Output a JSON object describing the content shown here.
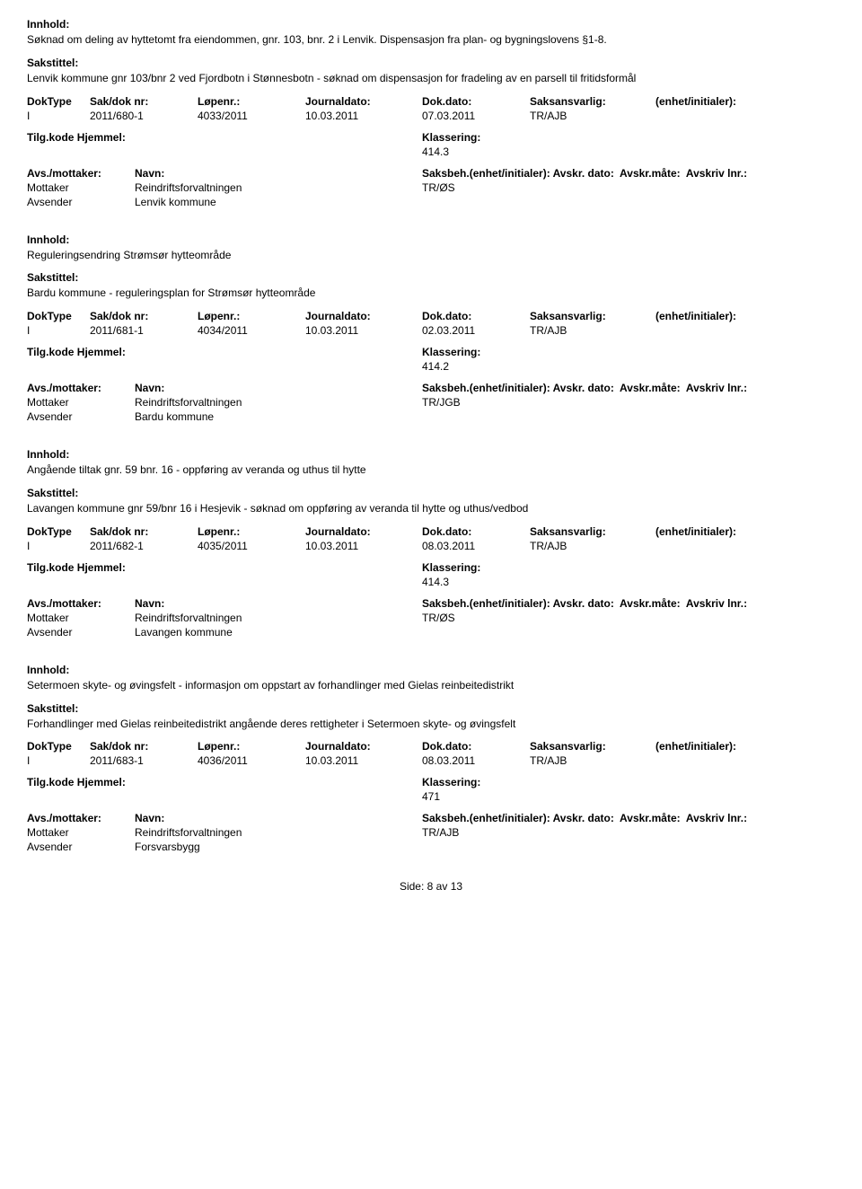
{
  "labels": {
    "innhold": "Innhold:",
    "sakstittel": "Sakstittel:",
    "doktype": "DokType",
    "sakdok": "Sak/dok nr:",
    "lopenr": "Løpenr.:",
    "journaldato": "Journaldato:",
    "dokdato": "Dok.dato:",
    "saksansvarlig": "Saksansvarlig:",
    "enhet": "(enhet/initialer):",
    "tilgkode": "Tilg.kode",
    "hjemmel": "Hjemmel:",
    "klassering": "Klassering:",
    "avsmottaker": "Avs./mottaker:",
    "navn": "Navn:",
    "saksbeh": "Saksbeh.",
    "saksbeh_enhet": "(enhet/initialer):",
    "avskr_dato": "Avskr. dato:",
    "avskr_mate": "Avskr.måte:",
    "avskriv_lnr": "Avskriv lnr.:",
    "mottaker": "Mottaker",
    "avsender": "Avsender"
  },
  "records": [
    {
      "innhold": "Søknad om deling av hyttetomt fra eiendommen, gnr. 103, bnr. 2 i Lenvik. Dispensasjon fra plan- og bygningslovens §1-8.",
      "sakstittel": "Lenvik kommune gnr 103/bnr 2 ved Fjordbotn i Stønnesbotn - søknad om dispensasjon for fradeling av en parsell til fritidsformål",
      "doktype": "I",
      "sakdok": "2011/680-1",
      "lopenr": "4033/2011",
      "journaldato": "10.03.2011",
      "dokdato": "07.03.2011",
      "saksansvarlig": "TR/AJB",
      "klassering": "414.3",
      "mottaker_navn": "Reindriftsforvaltningen",
      "mottaker_saksbeh": "TR/ØS",
      "avsender_navn": "Lenvik kommune"
    },
    {
      "innhold": "Reguleringsendring Strømsør hytteområde",
      "sakstittel": "Bardu kommune - reguleringsplan for Strømsør hytteområde",
      "doktype": "I",
      "sakdok": "2011/681-1",
      "lopenr": "4034/2011",
      "journaldato": "10.03.2011",
      "dokdato": "02.03.2011",
      "saksansvarlig": "TR/AJB",
      "klassering": "414.2",
      "mottaker_navn": "Reindriftsforvaltningen",
      "mottaker_saksbeh": "TR/JGB",
      "avsender_navn": "Bardu kommune"
    },
    {
      "innhold": "Angående tiltak gnr. 59 bnr. 16 - oppføring av veranda og uthus til hytte",
      "sakstittel": "Lavangen kommune gnr 59/bnr 16 i Hesjevik - søknad om oppføring av veranda til hytte og uthus/vedbod",
      "doktype": "I",
      "sakdok": "2011/682-1",
      "lopenr": "4035/2011",
      "journaldato": "10.03.2011",
      "dokdato": "08.03.2011",
      "saksansvarlig": "TR/AJB",
      "klassering": "414.3",
      "mottaker_navn": "Reindriftsforvaltningen",
      "mottaker_saksbeh": "TR/ØS",
      "avsender_navn": "Lavangen kommune"
    },
    {
      "innhold": "Setermoen skyte- og øvingsfelt - informasjon om oppstart av forhandlinger med Gielas reinbeitedistrikt",
      "sakstittel": "Forhandlinger med Gielas reinbeitedistrikt angående deres rettigheter i Setermoen skyte- og øvingsfelt",
      "doktype": "I",
      "sakdok": "2011/683-1",
      "lopenr": "4036/2011",
      "journaldato": "10.03.2011",
      "dokdato": "08.03.2011",
      "saksansvarlig": "TR/AJB",
      "klassering": "471",
      "mottaker_navn": "Reindriftsforvaltningen",
      "mottaker_saksbeh": "TR/AJB",
      "avsender_navn": "Forsvarsbygg"
    }
  ],
  "footer": {
    "side_label": "Side:",
    "page": "8",
    "av": "av",
    "total": "13"
  }
}
